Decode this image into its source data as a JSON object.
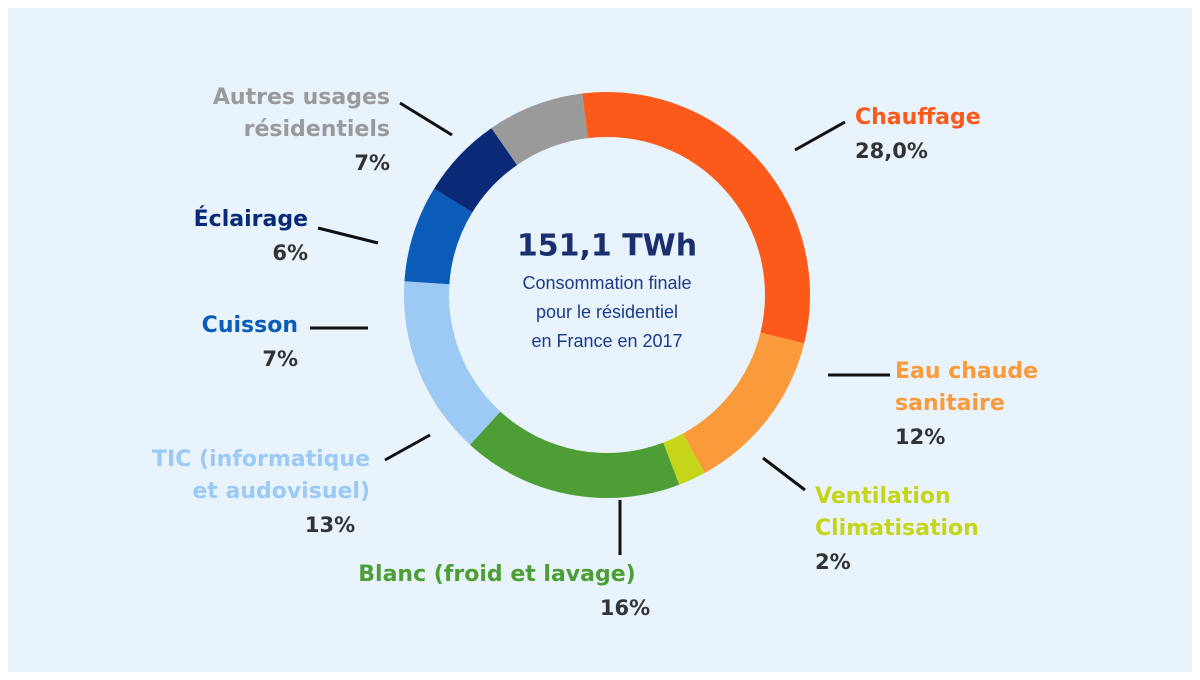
{
  "chart_data": {
    "type": "donut",
    "center_title": "151,1 TWh",
    "center_text": [
      "Consommation finale",
      "pour le résidentiel",
      "en France en 2017"
    ],
    "categories": [
      "Chauffage",
      "Eau chaude\nsanitaire",
      "Ventilation\nClimatisation",
      "Blanc (froid et lavage)",
      "TIC (informatique\net audovisuel)",
      "Cuisson",
      "Éclairage",
      "Autres usages\nrésidentiels"
    ],
    "values": [
      28.0,
      12,
      2,
      16,
      13,
      7,
      6,
      7
    ],
    "value_labels": [
      "28,0%",
      "12%",
      "2%",
      "16%",
      "13%",
      "7%",
      "6%",
      "7%"
    ],
    "colors": [
      "#fc5a1a",
      "#fb9a3a",
      "#c5d61a",
      "#4c9e35",
      "#9ccaf5",
      "#0a5cb8",
      "#0a2a78",
      "#9a9a9a"
    ]
  }
}
